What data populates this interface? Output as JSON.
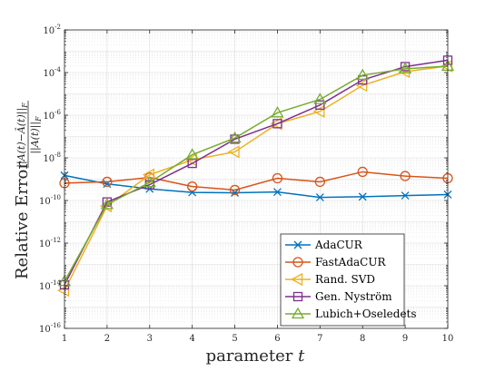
{
  "chart_data": {
    "type": "line",
    "xlabel": "parameter t",
    "ylabel": "Relative Error ||A(t) − Â(t)||_F / ||A(t)||_F",
    "x": [
      1,
      2,
      3,
      4,
      5,
      6,
      7,
      8,
      9,
      10
    ],
    "xlim": [
      1,
      10
    ],
    "ylim_log10": [
      -16,
      -2
    ],
    "yscale": "log",
    "grid": true,
    "legend_position": "bottom-right",
    "x_ticks": [
      "1",
      "2",
      "3",
      "4",
      "5",
      "6",
      "7",
      "8",
      "9",
      "10"
    ],
    "y_ticks": [
      {
        "base": "10",
        "exp": "-16",
        "value": -16
      },
      {
        "base": "10",
        "exp": "-14",
        "value": -14
      },
      {
        "base": "10",
        "exp": "-12",
        "value": -12
      },
      {
        "base": "10",
        "exp": "-10",
        "value": -10
      },
      {
        "base": "10",
        "exp": "-8",
        "value": -8
      },
      {
        "base": "10",
        "exp": "-6",
        "value": -6
      },
      {
        "base": "10",
        "exp": "-4",
        "value": -4
      },
      {
        "base": "10",
        "exp": "-2",
        "value": -2
      }
    ],
    "series": [
      {
        "name": "AdaCUR",
        "color": "#0072BD",
        "marker": "x",
        "values": [
          1.5e-09,
          6e-10,
          3.5e-10,
          2.4e-10,
          2.3e-10,
          2.5e-10,
          1.4e-10,
          1.5e-10,
          1.7e-10,
          1.9e-10
        ]
      },
      {
        "name": "FastAdaCUR",
        "color": "#D95319",
        "marker": "circle",
        "values": [
          6.5e-10,
          7.5e-10,
          1.2e-09,
          4.5e-10,
          3.1e-10,
          1.1e-09,
          7.5e-10,
          2.2e-09,
          1.4e-09,
          1.1e-09
        ]
      },
      {
        "name": "Rand. SVD",
        "color": "#EDB120",
        "marker": "triangle-left",
        "values": [
          6e-15,
          5.5e-11,
          1.6e-09,
          8e-09,
          1.9e-08,
          4e-07,
          1.5e-06,
          2.5e-05,
          0.00011,
          0.0002
        ]
      },
      {
        "name": "Gen. Nyström",
        "color": "#7E2F8E",
        "marker": "square",
        "values": [
          1.1e-14,
          8.5e-11,
          5.5e-10,
          5.5e-09,
          7.5e-08,
          4e-07,
          3e-06,
          4.5e-05,
          0.00019,
          0.00038
        ]
      },
      {
        "name": "Lubich+Oseledets",
        "color": "#77AC30",
        "marker": "triangle-up",
        "values": [
          1.6e-14,
          6.5e-11,
          7e-10,
          1.4e-08,
          8.5e-08,
          1.3e-06,
          5.5e-06,
          7.5e-05,
          0.00015,
          0.0002
        ]
      }
    ]
  }
}
